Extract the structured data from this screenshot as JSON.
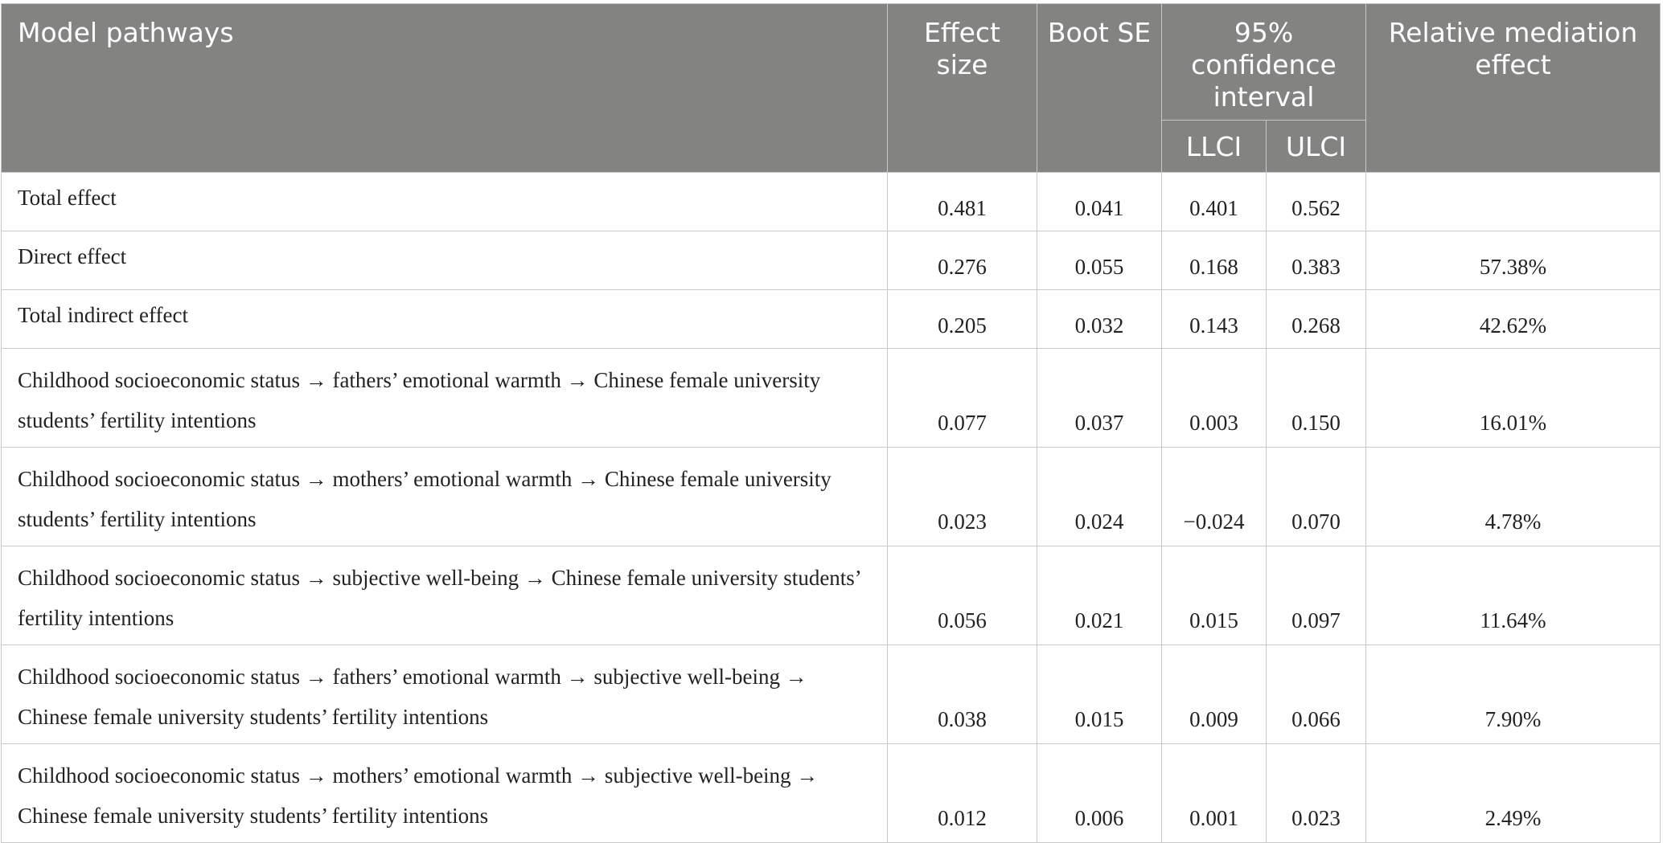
{
  "header": {
    "col_pathway": "Model pathways",
    "col_effect": "Effect size",
    "col_bootse": "Boot SE",
    "col_ci": "95% confidence interval",
    "col_llci": "LLCI",
    "col_ulci": "ULCI",
    "col_relative": "Relative mediation effect"
  },
  "rows": [
    {
      "pathway": "Total effect",
      "effect": "0.481",
      "bootse": "0.041",
      "llci": "0.401",
      "ulci": "0.562",
      "relative": ""
    },
    {
      "pathway": "Direct effect",
      "effect": "0.276",
      "bootse": "0.055",
      "llci": "0.168",
      "ulci": "0.383",
      "relative": "57.38%"
    },
    {
      "pathway": "Total indirect effect",
      "effect": "0.205",
      "bootse": "0.032",
      "llci": "0.143",
      "ulci": "0.268",
      "relative": "42.62%"
    },
    {
      "pathway": "Childhood socioeconomic status → fathers’ emotional warmth → Chinese female university students’ fertility intentions",
      "effect": "0.077",
      "bootse": "0.037",
      "llci": "0.003",
      "ulci": "0.150",
      "relative": "16.01%"
    },
    {
      "pathway": "Childhood socioeconomic status → mothers’ emotional warmth → Chinese female university students’ fertility intentions",
      "effect": "0.023",
      "bootse": "0.024",
      "llci": "−0.024",
      "ulci": "0.070",
      "relative": "4.78%"
    },
    {
      "pathway": "Childhood socioeconomic status → subjective well-being → Chinese female university students’ fertility intentions",
      "effect": "0.056",
      "bootse": "0.021",
      "llci": "0.015",
      "ulci": "0.097",
      "relative": "11.64%"
    },
    {
      "pathway": "Childhood socioeconomic status → fathers’ emotional warmth → subjective well-being → Chinese female university students’ fertility intentions",
      "effect": "0.038",
      "bootse": "0.015",
      "llci": "0.009",
      "ulci": "0.066",
      "relative": "7.90%"
    },
    {
      "pathway": "Childhood socioeconomic status → mothers’ emotional warmth → subjective well-being → Chinese female university students’ fertility intentions",
      "effect": "0.012",
      "bootse": "0.006",
      "llci": "0.001",
      "ulci": "0.023",
      "relative": "2.49%"
    }
  ]
}
